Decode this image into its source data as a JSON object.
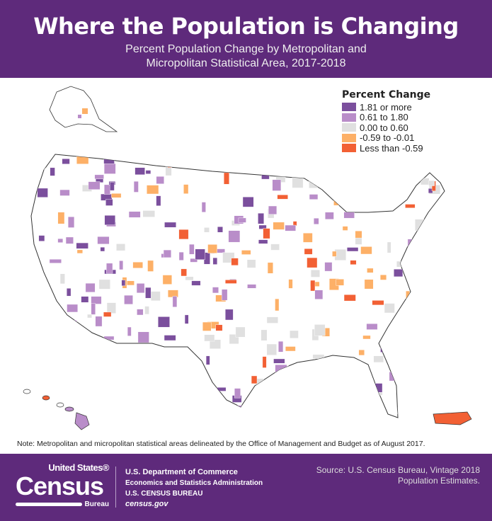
{
  "header": {
    "title": "Where the Population is Changing",
    "subtitle_line1": "Percent Population Change by Metropolitan and",
    "subtitle_line2": "Micropolitan Statistical Area, 2017-2018"
  },
  "legend": {
    "title": "Percent Change",
    "items": [
      {
        "label": "1.81 or more",
        "color": "#7b4f9d"
      },
      {
        "label": "0.61 to 1.80",
        "color": "#b98dc9"
      },
      {
        "label": "0.00 to 0.60",
        "color": "#e0e0e0"
      },
      {
        "label": "-0.59 to -0.01",
        "color": "#fdb067"
      },
      {
        "label": "Less than -0.59",
        "color": "#f26034"
      }
    ]
  },
  "note": "Note: Metropolitan and micropolitan statistical areas delineated by the Office of Management and Budget as of August 2017.",
  "footer": {
    "logo_text": "United States® Census Bureau",
    "logo_top": "United States®",
    "logo_main": "Census",
    "logo_bottom": "Bureau",
    "dept_line1": "U.S. Department of Commerce",
    "dept_line2": "Economics and Statistics Administration",
    "dept_line3": "U.S. CENSUS BUREAU",
    "dept_line4": "census.gov",
    "source_line1": "Source: U.S. Census Bureau, Vintage 2018",
    "source_line2": "Population Estimates."
  },
  "colors": {
    "brand": "#5e2a7b"
  }
}
